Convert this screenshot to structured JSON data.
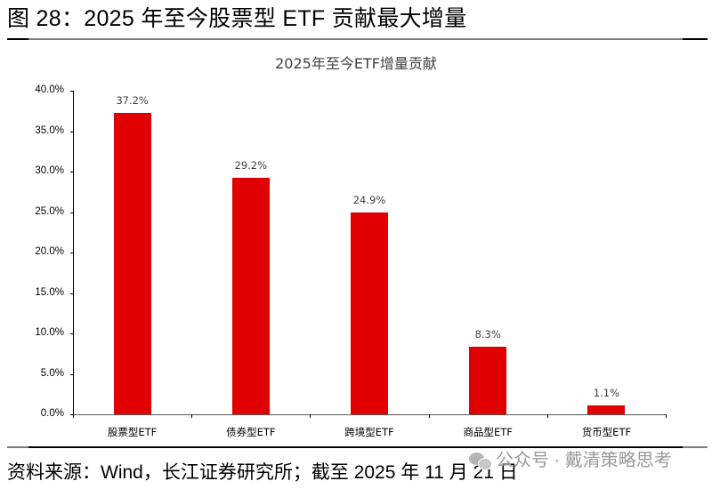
{
  "figure": {
    "title": "图  28：2025 年至今股票型 ETF 贡献最大增量"
  },
  "footer": {
    "source": "资料来源：Wind，长江证券研究所；截至 2025 年 11 月 21 日",
    "watermark": "公众号 · 戴清策略思考",
    "watermark_icon": "wechat-icon"
  },
  "colors": {
    "bar": "#e00000",
    "axis": "#000000",
    "label": "#404040",
    "rule": "#7f7f7f"
  },
  "chart_data": {
    "type": "bar",
    "title": "2025年至今ETF增量贡献",
    "xlabel": "",
    "ylabel": "",
    "categories": [
      "股票型ETF",
      "债券型ETF",
      "跨境型ETF",
      "商品型ETF",
      "货币型ETF"
    ],
    "values": [
      37.2,
      29.2,
      24.9,
      8.3,
      1.1
    ],
    "value_labels": [
      "37.2%",
      "29.2%",
      "24.9%",
      "8.3%",
      "1.1%"
    ],
    "ylim": [
      0,
      40
    ],
    "yticks": [
      "0.0%",
      "5.0%",
      "10.0%",
      "15.0%",
      "20.0%",
      "25.0%",
      "30.0%",
      "35.0%",
      "40.0%"
    ],
    "ytick_values": [
      0,
      5,
      10,
      15,
      20,
      25,
      30,
      35,
      40
    ],
    "grid": false,
    "legend": null,
    "data_labels": true
  }
}
